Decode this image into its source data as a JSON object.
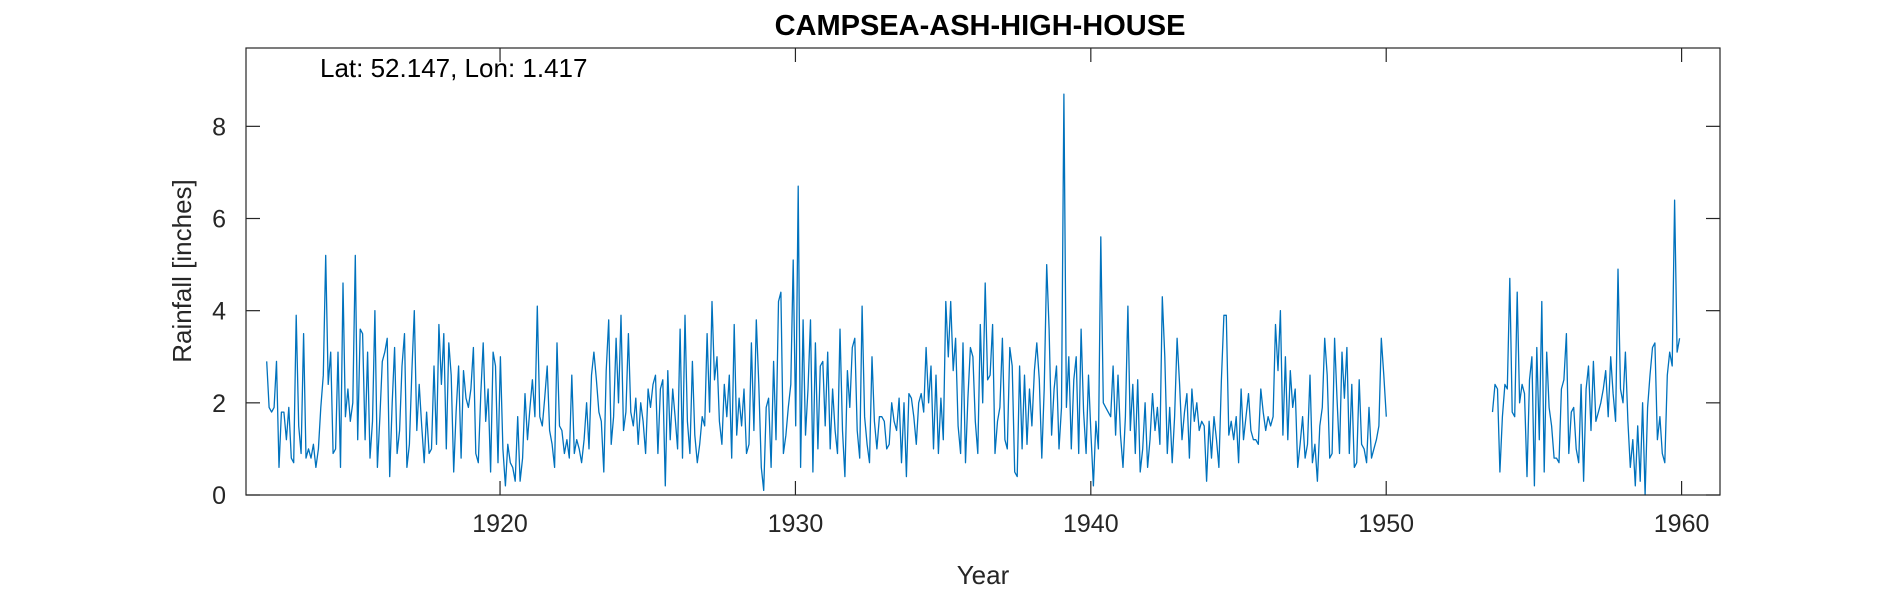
{
  "chart_data": {
    "type": "line",
    "title": "CAMPSEA-ASH-HIGH-HOUSE",
    "annotation": "Lat: 52.147, Lon: 1.417",
    "xlabel": "Year",
    "ylabel": "Rainfall [inches]",
    "xlim": [
      1911.4,
      1961.3
    ],
    "ylim": [
      0,
      9.7
    ],
    "xticks": [
      1920,
      1930,
      1940,
      1950,
      1960
    ],
    "yticks": [
      0,
      2,
      4,
      6,
      8
    ],
    "grid": false,
    "series_color": "#0072BD",
    "series": [
      {
        "segments": [
          {
            "start_year": 1912.1,
            "step_years": 0.0833,
            "values": [
              2.9,
              1.9,
              1.8,
              1.9,
              2.9,
              0.6,
              1.8,
              1.8,
              1.2,
              1.9,
              0.8,
              0.7,
              3.9,
              1.5,
              0.9,
              3.5,
              0.8,
              1.0,
              0.8,
              1.1,
              0.6,
              1.0,
              1.9,
              2.6,
              5.2,
              2.4,
              3.1,
              0.9,
              1.0,
              3.1,
              0.6,
              4.6,
              1.7,
              2.3,
              1.6,
              2.0,
              5.2,
              1.2,
              3.6,
              3.5,
              1.2,
              3.1,
              0.8,
              1.6,
              4.0,
              0.6,
              1.7,
              2.9,
              3.1,
              3.4,
              0.4,
              2.0,
              3.2,
              0.9,
              1.4,
              2.8,
              3.5,
              0.6,
              1.1,
              2.7,
              4.0,
              1.4,
              2.4,
              1.5,
              0.7,
              1.8,
              0.9,
              1.0,
              2.8,
              1.1,
              3.7,
              2.4,
              3.5,
              1.0,
              3.3,
              2.6,
              0.5,
              1.8,
              2.8,
              0.8,
              2.7,
              2.1,
              1.9,
              2.3,
              3.2,
              0.9,
              0.7,
              2.2,
              3.3,
              1.6,
              2.3,
              0.5,
              3.1,
              2.8,
              0.7,
              3.0,
              1.0,
              0.2,
              1.1,
              0.7,
              0.6,
              0.3,
              1.7,
              0.3,
              0.8,
              2.2,
              1.2,
              1.9,
              2.5,
              1.7,
              4.1,
              1.7,
              1.5,
              2.1,
              2.8,
              1.4,
              1.1,
              0.6,
              3.3,
              1.5,
              1.4,
              0.9,
              1.2,
              0.8,
              2.6,
              0.9,
              1.2,
              1.0,
              0.7,
              1.2,
              2.0,
              1.0,
              2.6,
              3.1,
              2.5,
              1.8,
              1.6,
              0.5,
              2.7,
              3.8,
              1.1,
              1.7,
              3.4,
              2.0,
              3.9,
              1.4,
              1.8,
              3.5,
              1.8,
              1.5,
              2.1,
              1.1,
              2.0,
              1.6,
              0.9,
              2.3,
              1.9,
              2.4,
              2.6,
              0.9,
              2.3,
              2.5,
              0.2,
              2.7,
              1.2,
              2.3,
              1.7,
              1.0,
              3.6,
              0.8,
              3.9,
              1.6,
              0.9,
              2.9,
              1.3,
              0.7,
              1.1,
              1.7,
              1.5,
              3.5,
              1.8,
              4.2,
              2.5,
              3.0,
              1.6,
              1.1,
              2.4,
              1.7,
              2.6,
              0.8,
              3.7,
              1.3,
              2.1,
              1.5,
              2.3,
              0.9,
              1.1,
              3.3,
              1.4,
              3.8,
              2.4,
              0.6,
              0.1,
              1.9,
              2.1,
              0.6,
              2.9,
              1.2,
              4.2,
              4.4,
              0.9,
              1.3,
              1.9,
              2.4,
              5.1,
              1.5,
              6.7,
              0.6,
              3.8,
              1.3,
              2.3,
              3.8,
              0.5,
              3.3,
              1.0,
              2.8,
              2.9,
              1.5,
              3.1,
              1.0,
              2.3,
              1.4,
              0.9,
              3.6,
              1.4,
              0.4,
              2.7,
              1.9,
              3.2,
              3.4,
              1.4,
              0.8,
              4.1,
              1.7,
              1.1,
              0.7,
              3.0,
              1.6,
              1.0,
              1.7,
              1.7,
              1.6,
              1.0,
              1.1,
              2.0,
              1.6,
              1.4,
              2.1,
              0.7,
              2.0,
              0.4,
              2.2,
              2.1,
              1.7,
              1.1,
              2.0,
              2.2,
              1.8,
              3.2,
              2.0,
              2.8,
              1.0,
              2.6,
              0.9,
              2.1,
              1.2,
              4.2,
              3.0,
              4.2,
              2.7,
              3.4,
              1.5,
              0.9,
              3.3,
              0.7,
              2.1,
              3.2,
              3.0,
              1.6,
              0.9,
              3.7,
              2.0,
              4.6,
              2.5,
              2.6,
              3.7,
              0.9,
              1.6,
              1.9,
              3.4,
              1.2,
              1.0,
              3.2,
              2.8,
              0.5,
              0.4,
              2.8,
              1.0,
              2.6,
              1.1,
              2.3,
              1.5,
              2.7,
              3.3,
              2.5,
              0.8,
              2.3,
              5.0,
              3.6,
              1.3,
              2.3,
              2.8,
              1.0,
              1.9,
              8.7,
              1.9,
              3.0,
              1.0,
              2.5,
              3.0,
              0.9,
              3.6,
              1.8,
              0.9,
              2.6,
              1.3,
              0.2,
              1.6,
              1.0,
              5.6,
              2.0,
              1.9,
              1.8,
              1.7,
              2.8,
              1.3,
              2.6,
              1.3,
              0.6,
              1.7,
              4.1,
              1.4,
              2.4,
              0.9,
              2.5,
              0.5,
              1.0,
              2.0,
              0.6,
              1.2,
              2.2,
              1.4,
              1.9,
              1.1,
              4.3,
              3.0,
              0.9,
              1.9,
              0.7,
              1.7,
              3.4,
              2.4,
              1.2,
              1.8,
              2.2,
              0.8,
              2.3,
              1.6,
              2.0,
              1.4,
              1.6,
              1.5,
              0.3,
              1.6,
              0.8,
              1.7,
              1.2,
              0.6,
              2.5,
              3.9,
              3.9,
              1.3,
              1.6,
              1.2,
              1.7,
              0.7,
              2.3,
              1.2,
              1.7,
              2.2,
              1.4,
              1.2,
              1.2,
              1.1,
              2.3,
              1.8,
              1.4,
              1.7,
              1.5,
              1.7,
              3.7,
              2.7,
              4.0,
              1.3,
              3.0,
              1.2,
              2.7,
              1.9,
              2.3,
              0.6,
              1.1,
              1.7,
              0.8,
              1.1,
              2.6,
              0.7,
              1.1,
              0.3,
              1.5,
              1.9,
              3.4,
              2.6,
              0.8,
              0.9,
              3.4,
              2.1,
              0.9,
              3.1,
              2.1,
              3.2,
              0.9,
              2.4,
              0.6,
              0.7,
              2.5,
              1.1,
              1.0,
              0.7,
              1.9,
              0.8,
              1.0,
              1.2,
              1.5,
              3.4,
              2.6,
              1.7
            ]
          },
          {
            "start_year": 1953.6,
            "step_years": 0.0833,
            "values": [
              1.8,
              2.4,
              2.3,
              0.5,
              1.7,
              2.4,
              2.3,
              4.7,
              1.8,
              1.7,
              4.4,
              2.0,
              2.4,
              2.2,
              0.4,
              2.5,
              3.0,
              0.2,
              3.2,
              1.2,
              4.2,
              0.5,
              3.1,
              1.9,
              1.5,
              0.8,
              0.8,
              0.7,
              2.3,
              2.5,
              3.5,
              0.9,
              1.8,
              1.9,
              1.0,
              0.7,
              2.4,
              0.3,
              2.3,
              2.8,
              1.4,
              2.9,
              1.6,
              1.8,
              2.0,
              2.3,
              2.7,
              1.7,
              3.0,
              2.2,
              1.6,
              4.9,
              2.3,
              2.0,
              3.1,
              1.6,
              0.6,
              1.2,
              0.2,
              1.5,
              0.3,
              2.0,
              0.0,
              1.9,
              2.6,
              3.2,
              3.3,
              1.2,
              1.7,
              0.9,
              0.7,
              2.6,
              3.1,
              2.8,
              6.4,
              3.1,
              3.4
            ]
          }
        ]
      }
    ]
  }
}
